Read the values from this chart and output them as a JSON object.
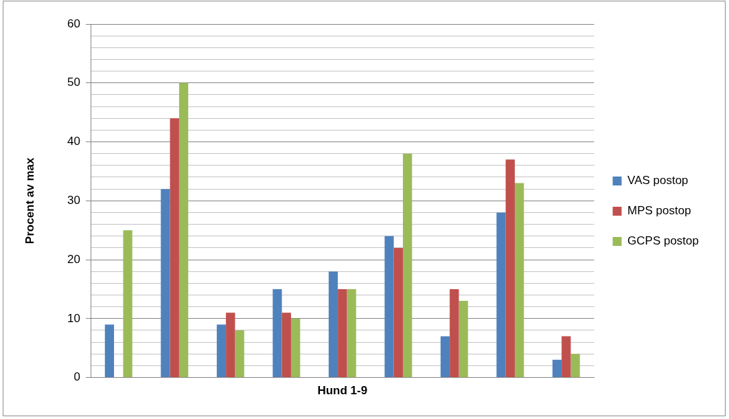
{
  "chart_data": {
    "type": "bar",
    "xlabel": "Hund 1-9",
    "ylabel": "Procent av max",
    "categories": [
      null,
      null,
      null,
      null,
      null,
      null,
      null,
      null,
      null
    ],
    "series": [
      {
        "name": "VAS postop",
        "color": "#4f81bd",
        "values": [
          9,
          32,
          9,
          15,
          18,
          24,
          7,
          28,
          3
        ]
      },
      {
        "name": "MPS postop",
        "color": "#c0504d",
        "values": [
          0,
          44,
          11,
          11,
          15,
          22,
          15,
          37,
          7
        ]
      },
      {
        "name": "GCPS postop",
        "color": "#9bbb59",
        "values": [
          25,
          50,
          8,
          10,
          15,
          38,
          13,
          33,
          4
        ]
      }
    ],
    "ylim": [
      0,
      60
    ],
    "yticks": [
      0,
      {
        "value": 2,
        "label": null
      },
      {
        "value": 4,
        "label": null
      },
      {
        "value": 6,
        "label": null
      },
      {
        "value": 8,
        "label": null
      },
      10,
      {
        "value": 12,
        "label": null
      },
      {
        "value": 14,
        "label": null
      },
      {
        "value": 16,
        "label": null
      },
      {
        "value": 18,
        "label": null
      },
      20,
      {
        "value": 22,
        "label": null
      },
      {
        "value": 24,
        "label": null
      },
      {
        "value": 26,
        "label": null
      },
      {
        "value": 28,
        "label": null
      },
      30,
      {
        "value": 32,
        "label": null
      },
      {
        "value": 34,
        "label": null
      },
      {
        "value": 36,
        "label": null
      },
      {
        "value": 38,
        "label": null
      },
      40,
      {
        "value": 42,
        "label": null
      },
      {
        "value": 44,
        "label": null
      },
      {
        "value": 46,
        "label": null
      },
      {
        "value": 48,
        "label": null
      },
      50,
      {
        "value": 52,
        "label": null
      },
      {
        "value": 54,
        "label": null
      },
      {
        "value": 56,
        "label": null
      },
      {
        "value": 58,
        "label": null
      },
      60
    ],
    "grid": "y",
    "legend": "right"
  }
}
